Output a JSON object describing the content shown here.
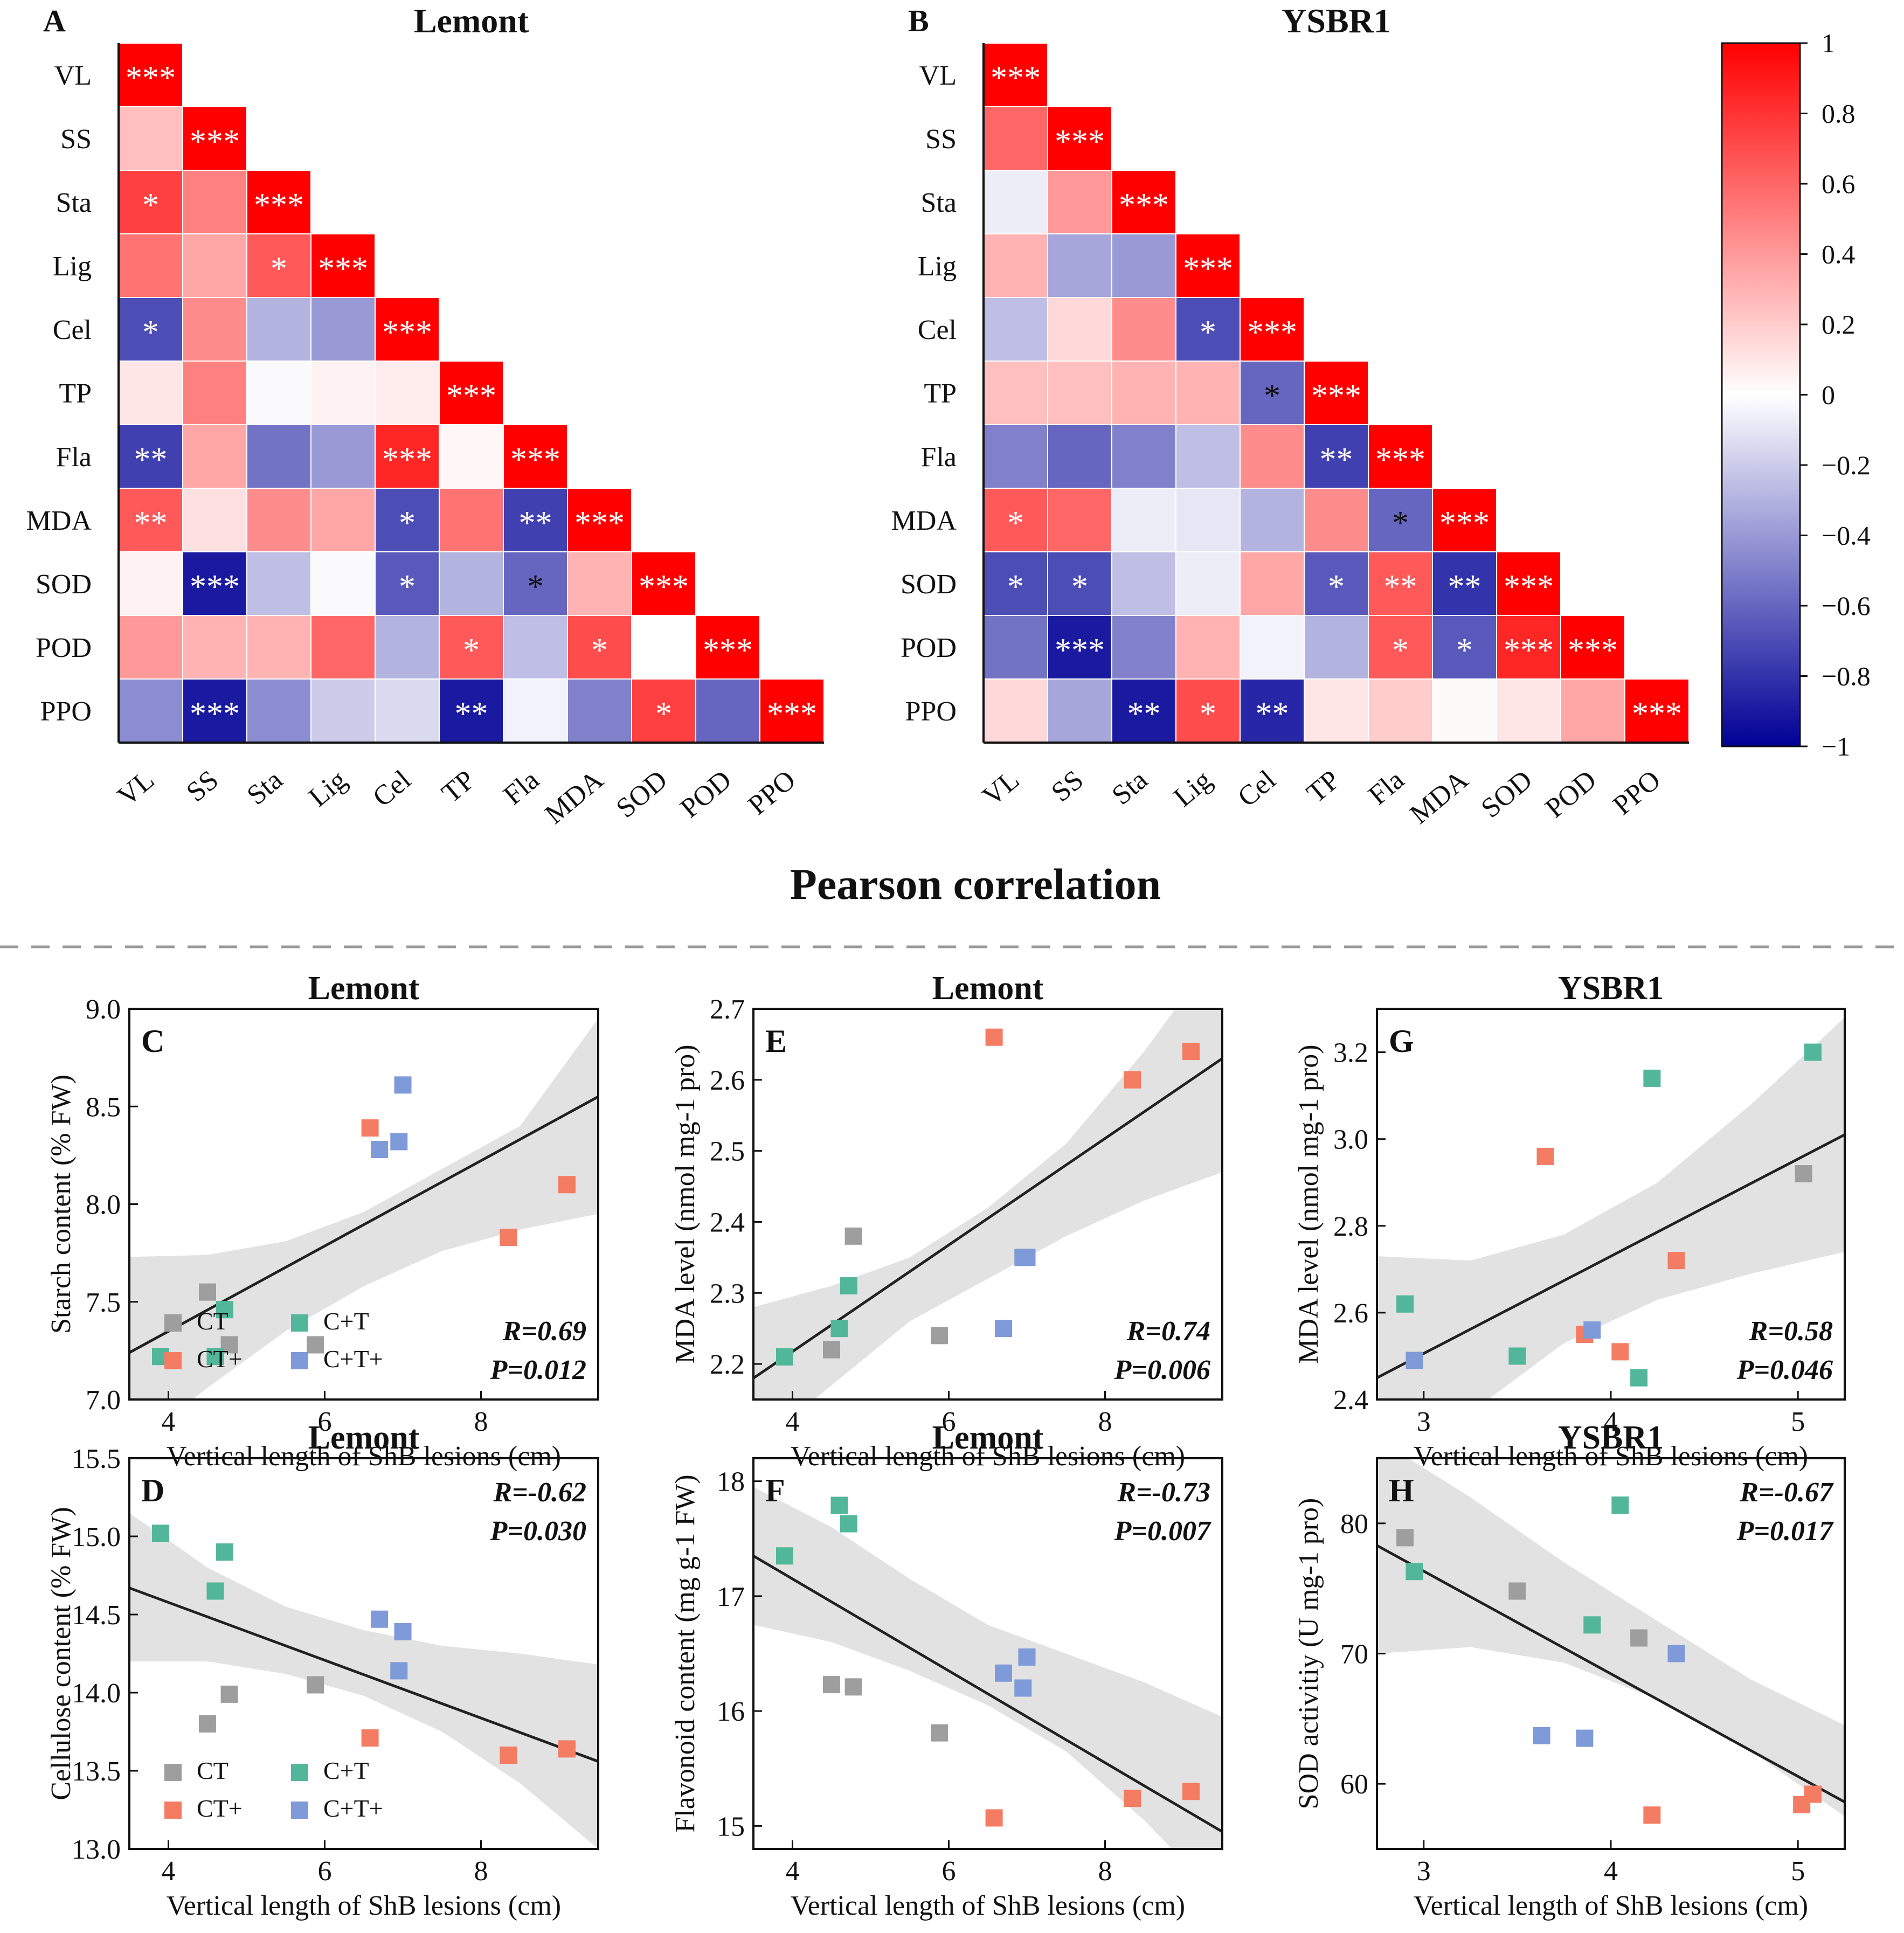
{
  "heatmaps": {
    "variables": [
      "VL",
      "SS",
      "Sta",
      "Lig",
      "Cel",
      "TP",
      "Fla",
      "MDA",
      "SOD",
      "POD",
      "PPO"
    ],
    "panels": [
      {
        "label": "A",
        "title": "Lemont",
        "values": [
          [
            1
          ],
          [
            0.25,
            1
          ],
          [
            0.75,
            0.5,
            1
          ],
          [
            0.55,
            0.35,
            0.65,
            1
          ],
          [
            -0.7,
            0.45,
            -0.3,
            -0.4,
            1
          ],
          [
            0.1,
            0.5,
            -0.02,
            0.05,
            0.07,
            1
          ],
          [
            -0.75,
            0.35,
            -0.55,
            -0.4,
            0.85,
            0.03,
            1
          ],
          [
            0.65,
            0.12,
            0.45,
            0.35,
            -0.7,
            0.55,
            -0.75,
            1
          ],
          [
            0.05,
            -0.9,
            -0.25,
            -0.02,
            -0.65,
            -0.3,
            -0.6,
            0.3,
            1
          ],
          [
            0.4,
            0.3,
            0.3,
            0.6,
            -0.3,
            0.65,
            -0.25,
            0.7,
            0.0,
            1
          ],
          [
            -0.45,
            -0.9,
            -0.45,
            -0.2,
            -0.15,
            -0.9,
            -0.05,
            -0.5,
            0.75,
            -0.6,
            1
          ]
        ],
        "stars": [
          [
            "***"
          ],
          [
            "",
            "***"
          ],
          [
            "*",
            "",
            "***"
          ],
          [
            "",
            "",
            "*",
            "***"
          ],
          [
            "*",
            "",
            "",
            "",
            "***"
          ],
          [
            "",
            "",
            "",
            "",
            "",
            "***"
          ],
          [
            "**",
            "",
            "",
            "",
            "***",
            "",
            "***"
          ],
          [
            "**",
            "",
            "",
            "",
            "*",
            "",
            "**",
            "***"
          ],
          [
            "",
            "***",
            "",
            "",
            "*",
            "",
            "*",
            "",
            "***"
          ],
          [
            "",
            "",
            "",
            "",
            "",
            "*",
            "",
            "*",
            "",
            "***"
          ],
          [
            "",
            "***",
            "",
            "",
            "",
            "**",
            "",
            "",
            "*",
            "",
            "***"
          ]
        ]
      },
      {
        "label": "B",
        "title": "YSBR1",
        "values": [
          [
            1
          ],
          [
            0.6,
            1
          ],
          [
            -0.07,
            0.4,
            1
          ],
          [
            0.3,
            -0.35,
            -0.4,
            1
          ],
          [
            -0.25,
            0.15,
            0.45,
            -0.7,
            1
          ],
          [
            0.25,
            0.25,
            0.3,
            0.3,
            -0.6,
            1
          ],
          [
            -0.5,
            -0.6,
            -0.5,
            -0.25,
            0.45,
            -0.75,
            1
          ],
          [
            0.65,
            0.6,
            -0.07,
            -0.1,
            -0.3,
            0.45,
            -0.6,
            1
          ],
          [
            -0.7,
            -0.7,
            -0.25,
            -0.07,
            0.35,
            -0.65,
            0.65,
            -0.8,
            1
          ],
          [
            -0.55,
            -0.9,
            -0.5,
            0.3,
            -0.05,
            -0.3,
            0.65,
            -0.65,
            0.85,
            1
          ],
          [
            0.15,
            -0.35,
            -0.9,
            0.7,
            -0.85,
            0.1,
            0.2,
            0.02,
            0.1,
            0.35,
            1
          ]
        ],
        "stars": [
          [
            "***"
          ],
          [
            "",
            "***"
          ],
          [
            "",
            "",
            "***"
          ],
          [
            "",
            "",
            "",
            "***"
          ],
          [
            "",
            "",
            "",
            "*",
            "***"
          ],
          [
            "",
            "",
            "",
            "",
            "*",
            "***"
          ],
          [
            "",
            "",
            "",
            "",
            "",
            "**",
            "***"
          ],
          [
            "*",
            "",
            "",
            "",
            "",
            "",
            "*",
            "***"
          ],
          [
            "*",
            "*",
            "",
            "",
            "",
            "*",
            "**",
            "**",
            "***"
          ],
          [
            "",
            "***",
            "",
            "",
            "",
            "",
            "*",
            "*",
            "***",
            "***"
          ],
          [
            "",
            "",
            "**",
            "*",
            "**",
            "",
            "",
            "",
            "",
            "",
            "***"
          ]
        ]
      }
    ],
    "colorbar": {
      "ticks": [
        "1",
        "0.8",
        "0.6",
        "0.4",
        "0.2",
        "0",
        "−0.2",
        "−0.4",
        "−0.6",
        "−0.8",
        "−1"
      ],
      "high_color": "#ff0000",
      "mid_color": "#ffffff",
      "low_color": "#000096"
    },
    "section_title": "Pearson correlation"
  },
  "chart_data": [
    {
      "type": "scatter",
      "label": "C",
      "title": "Lemont",
      "xlabel": "Vertical length of ShB lesions (cm)",
      "ylabel": "Starch content (% FW)",
      "xlim": [
        3.5,
        9.5
      ],
      "ylim": [
        7.0,
        9.0
      ],
      "xticks": [
        "4",
        "6",
        "8"
      ],
      "yticks": [
        "7.0",
        "7.5",
        "8.0",
        "8.5",
        "9.0"
      ],
      "series": [
        {
          "name": "CT",
          "x": [
            4.5,
            4.78,
            5.88
          ],
          "y": [
            7.55,
            7.28,
            7.28
          ]
        },
        {
          "name": "CT+",
          "x": [
            6.58,
            8.35,
            9.1
          ],
          "y": [
            8.39,
            7.83,
            8.1
          ]
        },
        {
          "name": "C+T",
          "x": [
            3.9,
            4.6,
            4.72
          ],
          "y": [
            7.22,
            7.22,
            7.46
          ]
        },
        {
          "name": "C+T+",
          "x": [
            6.7,
            6.95,
            7.0
          ],
          "y": [
            8.28,
            8.32,
            8.61
          ]
        }
      ],
      "fit_line": {
        "x": [
          3.5,
          9.5
        ],
        "y": [
          7.24,
          8.55
        ]
      },
      "ci_band": {
        "x": [
          3.5,
          4.5,
          5.5,
          6.5,
          7.5,
          8.5,
          9.5
        ],
        "lower": [
          6.75,
          7.06,
          7.35,
          7.58,
          7.76,
          7.87,
          7.95
        ],
        "upper": [
          7.73,
          7.74,
          7.81,
          7.96,
          8.18,
          8.4,
          8.95
        ]
      },
      "stats": {
        "r": "R=0.69",
        "p": "P=0.012"
      },
      "legend": [
        {
          "name": "CT",
          "label": "CT"
        },
        {
          "name": "CT+",
          "label": "CT+"
        },
        {
          "name": "C+T",
          "label": "C+T"
        },
        {
          "name": "C+T+",
          "label": "C+T+"
        }
      ]
    },
    {
      "type": "scatter",
      "label": "D",
      "title": "Lemont",
      "xlabel": "Vertical length of ShB lesions (cm)",
      "ylabel": "Cellulose content (% FW)",
      "xlim": [
        3.5,
        9.5
      ],
      "ylim": [
        13.0,
        15.5
      ],
      "xticks": [
        "4",
        "6",
        "8"
      ],
      "yticks": [
        "13.0",
        "13.5",
        "14.0",
        "14.5",
        "15.0",
        "15.5"
      ],
      "series": [
        {
          "name": "CT",
          "x": [
            4.5,
            4.78,
            5.88
          ],
          "y": [
            13.8,
            13.99,
            14.05
          ]
        },
        {
          "name": "CT+",
          "x": [
            6.58,
            8.35,
            9.1
          ],
          "y": [
            13.71,
            13.6,
            13.64
          ]
        },
        {
          "name": "C+T",
          "x": [
            3.9,
            4.6,
            4.72
          ],
          "y": [
            15.02,
            14.65,
            14.9
          ]
        },
        {
          "name": "C+T+",
          "x": [
            6.7,
            6.95,
            7.0
          ],
          "y": [
            14.47,
            14.14,
            14.39
          ]
        }
      ],
      "fit_line": {
        "x": [
          3.5,
          9.5
        ],
        "y": [
          14.67,
          13.56
        ]
      },
      "ci_band": {
        "x": [
          3.5,
          4.5,
          5.5,
          6.5,
          7.5,
          8.5,
          9.5
        ],
        "lower": [
          14.2,
          14.2,
          14.12,
          13.98,
          13.75,
          13.42,
          13.0
        ],
        "upper": [
          15.15,
          14.8,
          14.55,
          14.4,
          14.3,
          14.25,
          14.18
        ]
      },
      "stats": {
        "r": "R=-0.62",
        "p": "P=0.030"
      },
      "legend": [
        {
          "name": "CT",
          "label": "CT"
        },
        {
          "name": "CT+",
          "label": "CT+"
        },
        {
          "name": "C+T",
          "label": "C+T"
        },
        {
          "name": "C+T+",
          "label": "C+T+"
        }
      ]
    },
    {
      "type": "scatter",
      "label": "E",
      "title": "Lemont",
      "xlabel": "Vertical length of ShB lesions (cm)",
      "ylabel": "MDA level (nmol mg-1 pro)",
      "xlim": [
        3.5,
        9.5
      ],
      "ylim": [
        2.15,
        2.7
      ],
      "xticks": [
        "4",
        "6",
        "8"
      ],
      "yticks": [
        "2.2",
        "2.3",
        "2.4",
        "2.5",
        "2.6",
        "2.7"
      ],
      "series": [
        {
          "name": "CT",
          "x": [
            4.5,
            4.78,
            5.88
          ],
          "y": [
            2.22,
            2.38,
            2.24
          ]
        },
        {
          "name": "CT+",
          "x": [
            6.58,
            8.35,
            9.1
          ],
          "y": [
            2.66,
            2.6,
            2.64
          ]
        },
        {
          "name": "C+T",
          "x": [
            3.9,
            4.6,
            4.72
          ],
          "y": [
            2.21,
            2.25,
            2.31
          ]
        },
        {
          "name": "C+T+",
          "x": [
            6.7,
            6.95,
            7.0
          ],
          "y": [
            2.25,
            2.35,
            2.35
          ]
        }
      ],
      "fit_line": {
        "x": [
          3.5,
          9.5
        ],
        "y": [
          2.18,
          2.63
        ]
      },
      "ci_band": {
        "x": [
          3.5,
          4.5,
          5.5,
          6.5,
          7.5,
          8.5,
          9.5
        ],
        "lower": [
          2.08,
          2.17,
          2.26,
          2.32,
          2.38,
          2.43,
          2.47
        ],
        "upper": [
          2.28,
          2.31,
          2.35,
          2.42,
          2.51,
          2.64,
          2.79
        ]
      },
      "stats": {
        "r": "R=0.74",
        "p": "P=0.006"
      }
    },
    {
      "type": "scatter",
      "label": "F",
      "title": "Lemont",
      "xlabel": "Vertical length of ShB lesions (cm)",
      "ylabel": "Flavonoid content (mg g-1 FW)",
      "xlim": [
        3.5,
        9.5
      ],
      "ylim": [
        14.8,
        18.2
      ],
      "xticks": [
        "4",
        "6",
        "8"
      ],
      "yticks": [
        "15",
        "16",
        "17",
        "18"
      ],
      "series": [
        {
          "name": "CT",
          "x": [
            4.5,
            4.78,
            5.88
          ],
          "y": [
            16.23,
            16.21,
            15.81
          ]
        },
        {
          "name": "CT+",
          "x": [
            6.58,
            8.35,
            9.1
          ],
          "y": [
            15.07,
            15.24,
            15.3
          ]
        },
        {
          "name": "C+T",
          "x": [
            3.9,
            4.6,
            4.72
          ],
          "y": [
            17.35,
            17.79,
            17.63
          ]
        },
        {
          "name": "C+T+",
          "x": [
            6.7,
            6.95,
            7.0
          ],
          "y": [
            16.33,
            16.2,
            16.47
          ]
        }
      ],
      "fit_line": {
        "x": [
          3.5,
          9.5
        ],
        "y": [
          17.35,
          14.95
        ]
      },
      "ci_band": {
        "x": [
          3.5,
          4.5,
          5.5,
          6.5,
          7.5,
          8.5,
          9.5
        ],
        "lower": [
          16.75,
          16.6,
          16.35,
          16.05,
          15.65,
          15.05,
          14.35
        ],
        "upper": [
          17.95,
          17.6,
          17.15,
          16.75,
          16.5,
          16.25,
          15.95
        ]
      },
      "stats": {
        "r": "R=-0.73",
        "p": "P=0.007"
      }
    },
    {
      "type": "scatter",
      "label": "G",
      "title": "YSBR1",
      "xlabel": "Vertical length of ShB lesions (cm)",
      "ylabel": "MDA level (nmol mg-1 pro)",
      "xlim": [
        2.75,
        5.25
      ],
      "ylim": [
        2.4,
        3.3
      ],
      "xticks": [
        "3",
        "4",
        "5"
      ],
      "yticks": [
        "2.4",
        "2.6",
        "2.8",
        "3.0",
        "3.2"
      ],
      "series": [
        {
          "name": "CT",
          "x": [
            5.03
          ],
          "y": [
            2.92
          ]
        },
        {
          "name": "CT+",
          "x": [
            3.65,
            3.86,
            4.05,
            4.35
          ],
          "y": [
            2.96,
            2.55,
            2.51,
            2.72
          ]
        },
        {
          "name": "C+T",
          "x": [
            2.9,
            3.5,
            4.22,
            4.15,
            5.08
          ],
          "y": [
            2.62,
            2.5,
            3.14,
            2.45,
            3.2
          ]
        },
        {
          "name": "C+T+",
          "x": [
            2.95,
            3.9
          ],
          "y": [
            2.49,
            2.56
          ]
        }
      ],
      "fit_line": {
        "x": [
          2.75,
          5.25
        ],
        "y": [
          2.45,
          3.01
        ]
      },
      "ci_band": {
        "x": [
          2.75,
          3.25,
          3.75,
          4.25,
          4.75,
          5.25
        ],
        "lower": [
          2.17,
          2.37,
          2.53,
          2.63,
          2.69,
          2.74
        ],
        "upper": [
          2.73,
          2.72,
          2.78,
          2.9,
          3.08,
          3.28
        ]
      },
      "stats": {
        "r": "R=0.58",
        "p": "P=0.046"
      }
    },
    {
      "type": "scatter",
      "label": "H",
      "title": "YSBR1",
      "xlabel": "Vertical length of ShB lesions (cm)",
      "ylabel": "SOD activitiy (U mg-1 pro)",
      "xlim": [
        2.75,
        5.25
      ],
      "ylim": [
        55,
        85
      ],
      "xticks": [
        "3",
        "4",
        "5"
      ],
      "yticks": [
        "60",
        "70",
        "80"
      ],
      "series": [
        {
          "name": "CT",
          "x": [
            2.9,
            3.5,
            4.15
          ],
          "y": [
            78.9,
            74.8,
            71.2
          ]
        },
        {
          "name": "CT+",
          "x": [
            4.22,
            5.02,
            5.08
          ],
          "y": [
            57.6,
            58.4,
            59.2
          ]
        },
        {
          "name": "C+T",
          "x": [
            2.95,
            3.9,
            4.05
          ],
          "y": [
            76.3,
            72.2,
            81.4
          ]
        },
        {
          "name": "C+T+",
          "x": [
            3.63,
            3.86,
            4.35
          ],
          "y": [
            63.7,
            63.5,
            70.0
          ]
        }
      ],
      "fit_line": {
        "x": [
          2.75,
          5.25
        ],
        "y": [
          78.3,
          58.6
        ]
      },
      "ci_band": {
        "x": [
          2.75,
          3.25,
          3.75,
          4.25,
          4.75,
          5.25
        ],
        "lower": [
          70.0,
          70.5,
          69.3,
          66.5,
          62.5,
          57.5
        ],
        "upper": [
          86.5,
          82.0,
          77.0,
          72.5,
          68.0,
          64.5
        ]
      },
      "stats": {
        "r": "R=-0.67",
        "p": "P=0.017"
      }
    }
  ],
  "scatter_colors": {
    "CT": "#9e9e9e",
    "CT+": "#f47c63",
    "C+T": "#52b69a",
    "C+T+": "#7e9ad8",
    "band": "#e2e2e2",
    "line": "#222222"
  }
}
